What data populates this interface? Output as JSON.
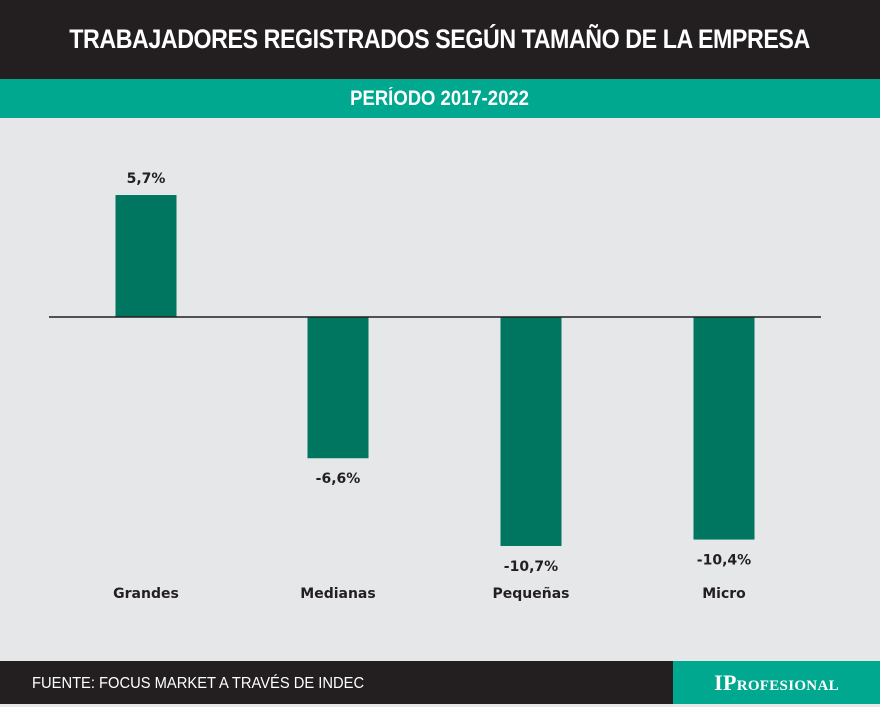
{
  "header": {
    "title": "TRABAJADORES REGISTRADOS SEGÚN TAMAÑO DE LA EMPRESA"
  },
  "subheader": {
    "title": "PERÍODO 2017-2022"
  },
  "footer": {
    "source": "FUENTE: FOCUS MARKET A TRAVÉS DE INDEC",
    "brand": "IProfesional"
  },
  "colors": {
    "header_bg": "#231f20",
    "accent": "#00a88f",
    "bar": "#007560",
    "plot_bg": "#e6e7e8"
  },
  "chart_data": {
    "type": "bar",
    "title": "TRABAJADORES REGISTRADOS SEGÚN TAMAÑO DE LA EMPRESA",
    "subtitle": "PERÍODO 2017-2022",
    "categories": [
      "Grandes",
      "Medianas",
      "Pequeñas",
      "Micro"
    ],
    "values": [
      5.7,
      -6.6,
      -10.7,
      -10.4
    ],
    "data_labels": [
      "5,7%",
      "-6,6%",
      "-10,7%",
      "-10,4%"
    ],
    "unit": "%",
    "xlabel": "",
    "ylabel": "",
    "ylim": [
      -11,
      6
    ],
    "grid": false,
    "legend": "none"
  }
}
